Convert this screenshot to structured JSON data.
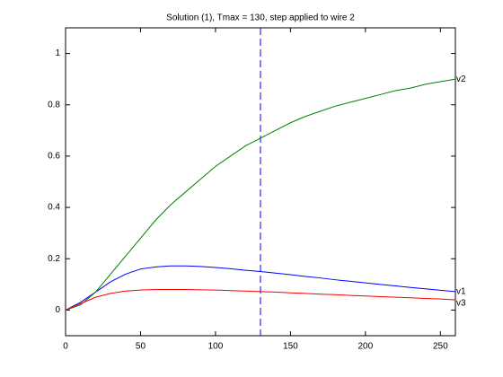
{
  "chart_data": {
    "type": "line",
    "title": "Solution (1), Tmax = 130, step applied to wire 2",
    "x": [
      0,
      10,
      20,
      30,
      40,
      50,
      60,
      70,
      80,
      90,
      100,
      110,
      120,
      130,
      140,
      150,
      160,
      170,
      180,
      190,
      200,
      210,
      220,
      230,
      240,
      250,
      260
    ],
    "series": [
      {
        "name": "v1",
        "color": "#0000ff",
        "values": [
          0,
          0.03,
          0.07,
          0.11,
          0.14,
          0.16,
          0.168,
          0.172,
          0.172,
          0.17,
          0.166,
          0.161,
          0.155,
          0.15,
          0.144,
          0.138,
          0.131,
          0.125,
          0.118,
          0.112,
          0.106,
          0.1,
          0.094,
          0.088,
          0.083,
          0.077,
          0.072
        ]
      },
      {
        "name": "v2",
        "color": "#008000",
        "values": [
          0,
          0.02,
          0.07,
          0.14,
          0.21,
          0.28,
          0.35,
          0.41,
          0.46,
          0.51,
          0.56,
          0.6,
          0.64,
          0.67,
          0.7,
          0.73,
          0.755,
          0.775,
          0.795,
          0.81,
          0.825,
          0.84,
          0.855,
          0.865,
          0.88,
          0.89,
          0.9
        ]
      },
      {
        "name": "v3",
        "color": "#ff0000",
        "values": [
          0,
          0.025,
          0.05,
          0.065,
          0.074,
          0.078,
          0.08,
          0.08,
          0.08,
          0.079,
          0.078,
          0.076,
          0.074,
          0.072,
          0.07,
          0.067,
          0.065,
          0.062,
          0.06,
          0.057,
          0.055,
          0.052,
          0.05,
          0.048,
          0.045,
          0.043,
          0.04
        ]
      }
    ],
    "vline": 130,
    "vline_color": "#0000ff",
    "xlim": [
      0,
      260
    ],
    "xticks": [
      0,
      50,
      100,
      150,
      200,
      250
    ],
    "ylim": [
      -0.1,
      1.1
    ],
    "yticks": [
      0,
      0.2,
      0.4,
      0.6,
      0.8,
      1
    ],
    "grid": false
  }
}
